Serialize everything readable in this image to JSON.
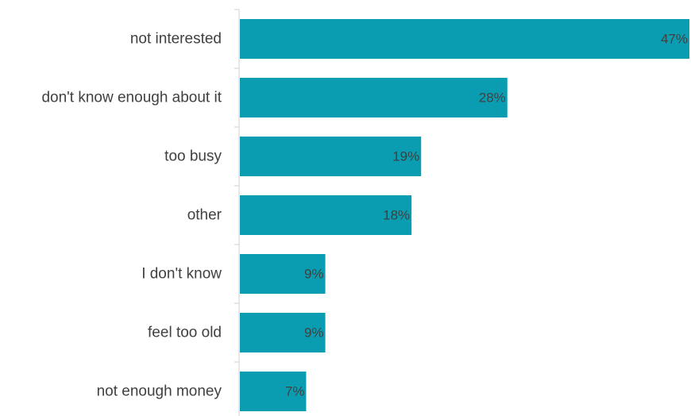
{
  "colors": {
    "bar": "#0a9db1",
    "axis": "#d0d0d0",
    "text": "#404040"
  },
  "chart_data": {
    "type": "bar",
    "orientation": "horizontal",
    "title": "",
    "xlabel": "",
    "ylabel": "",
    "xlim": [
      0,
      47
    ],
    "grid": false,
    "legend": "none",
    "categories": [
      "not interested",
      "don't know enough about it",
      "too busy",
      "other",
      "I don't know",
      "feel too old",
      "not enough money"
    ],
    "values": [
      47,
      28,
      19,
      18,
      9,
      9,
      7
    ],
    "value_labels": [
      "47%",
      "28%",
      "19%",
      "18%",
      "9%",
      "9%",
      "7%"
    ]
  }
}
